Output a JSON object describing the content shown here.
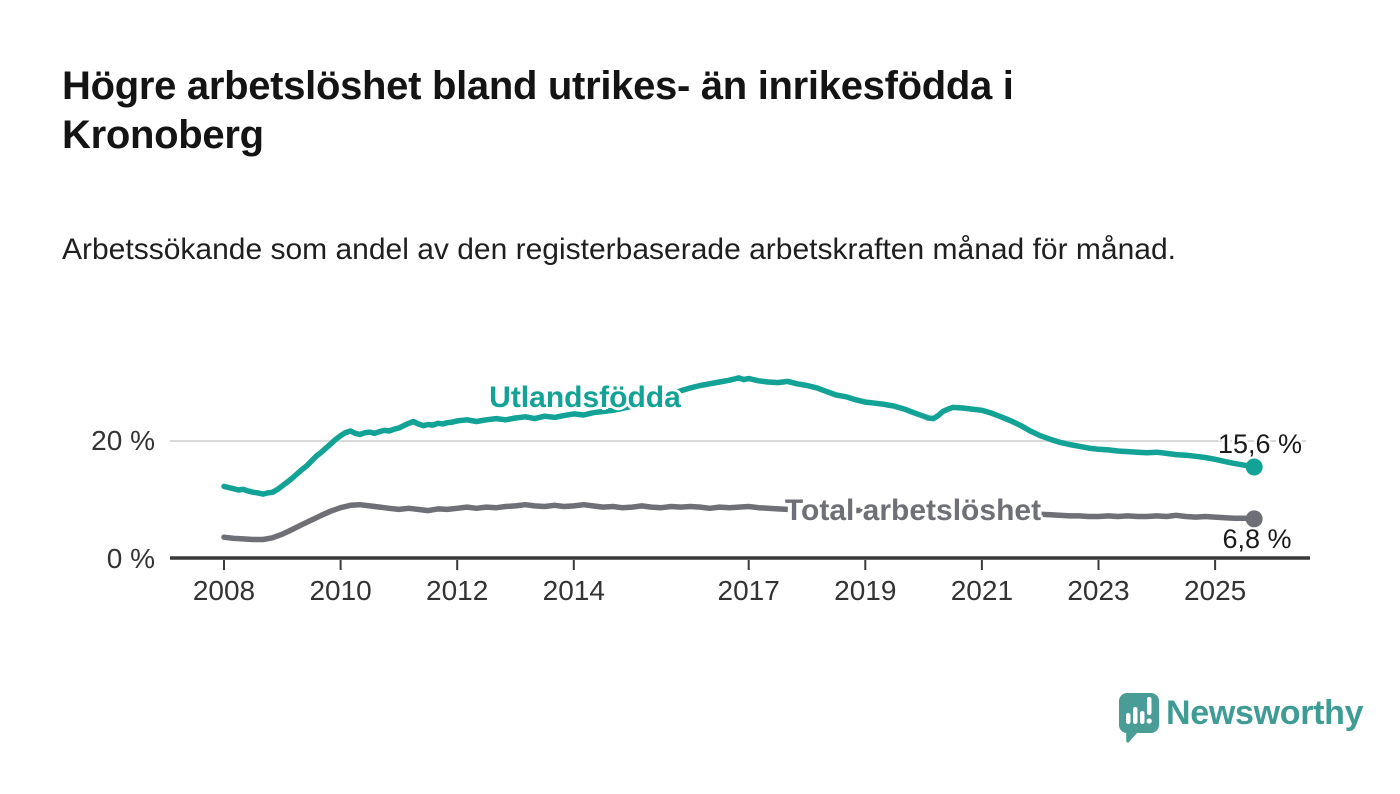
{
  "header": {
    "title": "Högre arbetslöshet bland utrikes- än inrikesfödda i Kronoberg",
    "subtitle": "Arbetssökande som andel av den registerbaserade arbetskraften månad för månad."
  },
  "chart_data": {
    "type": "line",
    "title": "Högre arbetslöshet bland utrikes- än inrikesfödda i Kronoberg",
    "subtitle": "Arbetssökande som andel av den registerbaserade arbetskraften månad för månad.",
    "grid": "horizontal gridline at 20 % only",
    "legend_position": "inline labels on lines",
    "x_axis": {
      "unit": "year (monthly data)",
      "domain": [
        2008.0,
        2026.0
      ],
      "ticks": [
        2008,
        2010,
        2012,
        2014,
        2017,
        2019,
        2021,
        2023,
        2025
      ]
    },
    "y_axis": {
      "unit": "percent",
      "domain": [
        0,
        32
      ],
      "ticks": [
        {
          "value": 0,
          "label": "0 %"
        },
        {
          "value": 20,
          "label": "20 %"
        }
      ]
    },
    "series": [
      {
        "name": "Utlandsfödda",
        "color": "#12a296",
        "end_label": "15,6 %",
        "end_value": 15.6,
        "points": [
          [
            2008.0,
            12.3
          ],
          [
            2008.08,
            12.1
          ],
          [
            2008.17,
            11.9
          ],
          [
            2008.25,
            11.7
          ],
          [
            2008.33,
            11.8
          ],
          [
            2008.42,
            11.5
          ],
          [
            2008.5,
            11.3
          ],
          [
            2008.58,
            11.2
          ],
          [
            2008.67,
            11.0
          ],
          [
            2008.75,
            11.2
          ],
          [
            2008.83,
            11.3
          ],
          [
            2008.92,
            11.8
          ],
          [
            2009.0,
            12.4
          ],
          [
            2009.08,
            13.0
          ],
          [
            2009.17,
            13.7
          ],
          [
            2009.25,
            14.4
          ],
          [
            2009.33,
            15.1
          ],
          [
            2009.42,
            15.8
          ],
          [
            2009.5,
            16.6
          ],
          [
            2009.58,
            17.4
          ],
          [
            2009.67,
            18.1
          ],
          [
            2009.75,
            18.8
          ],
          [
            2009.83,
            19.5
          ],
          [
            2009.92,
            20.3
          ],
          [
            2010.0,
            20.9
          ],
          [
            2010.08,
            21.4
          ],
          [
            2010.17,
            21.7
          ],
          [
            2010.25,
            21.3
          ],
          [
            2010.33,
            21.1
          ],
          [
            2010.42,
            21.4
          ],
          [
            2010.5,
            21.5
          ],
          [
            2010.58,
            21.3
          ],
          [
            2010.67,
            21.6
          ],
          [
            2010.75,
            21.8
          ],
          [
            2010.83,
            21.7
          ],
          [
            2010.92,
            22.0
          ],
          [
            2011.0,
            22.2
          ],
          [
            2011.08,
            22.6
          ],
          [
            2011.17,
            23.0
          ],
          [
            2011.25,
            23.3
          ],
          [
            2011.33,
            22.9
          ],
          [
            2011.42,
            22.6
          ],
          [
            2011.5,
            22.8
          ],
          [
            2011.58,
            22.7
          ],
          [
            2011.67,
            23.0
          ],
          [
            2011.75,
            22.9
          ],
          [
            2011.83,
            23.1
          ],
          [
            2011.92,
            23.2
          ],
          [
            2012.0,
            23.4
          ],
          [
            2012.17,
            23.6
          ],
          [
            2012.33,
            23.3
          ],
          [
            2012.5,
            23.6
          ],
          [
            2012.67,
            23.8
          ],
          [
            2012.83,
            23.6
          ],
          [
            2013.0,
            23.9
          ],
          [
            2013.17,
            24.1
          ],
          [
            2013.33,
            23.8
          ],
          [
            2013.5,
            24.2
          ],
          [
            2013.67,
            24.0
          ],
          [
            2013.83,
            24.3
          ],
          [
            2014.0,
            24.6
          ],
          [
            2014.17,
            24.4
          ],
          [
            2014.33,
            24.8
          ],
          [
            2014.5,
            25.0
          ],
          [
            2014.67,
            25.2
          ],
          [
            2014.83,
            25.5
          ],
          [
            2015.0,
            25.9
          ],
          [
            2015.17,
            26.3
          ],
          [
            2015.33,
            26.8
          ],
          [
            2015.5,
            27.3
          ],
          [
            2015.67,
            27.9
          ],
          [
            2015.83,
            28.5
          ],
          [
            2016.0,
            29.0
          ],
          [
            2016.17,
            29.4
          ],
          [
            2016.33,
            29.7
          ],
          [
            2016.5,
            30.0
          ],
          [
            2016.67,
            30.3
          ],
          [
            2016.83,
            30.7
          ],
          [
            2016.92,
            30.4
          ],
          [
            2017.0,
            30.6
          ],
          [
            2017.17,
            30.2
          ],
          [
            2017.33,
            30.0
          ],
          [
            2017.5,
            29.9
          ],
          [
            2017.67,
            30.1
          ],
          [
            2017.83,
            29.7
          ],
          [
            2018.0,
            29.4
          ],
          [
            2018.17,
            29.0
          ],
          [
            2018.33,
            28.4
          ],
          [
            2018.5,
            27.8
          ],
          [
            2018.67,
            27.5
          ],
          [
            2018.83,
            27.0
          ],
          [
            2019.0,
            26.6
          ],
          [
            2019.17,
            26.4
          ],
          [
            2019.33,
            26.2
          ],
          [
            2019.5,
            25.9
          ],
          [
            2019.67,
            25.4
          ],
          [
            2019.83,
            24.8
          ],
          [
            2020.0,
            24.2
          ],
          [
            2020.08,
            23.9
          ],
          [
            2020.17,
            23.8
          ],
          [
            2020.25,
            24.3
          ],
          [
            2020.33,
            25.0
          ],
          [
            2020.42,
            25.4
          ],
          [
            2020.5,
            25.7
          ],
          [
            2020.67,
            25.6
          ],
          [
            2020.83,
            25.4
          ],
          [
            2021.0,
            25.2
          ],
          [
            2021.17,
            24.7
          ],
          [
            2021.33,
            24.1
          ],
          [
            2021.5,
            23.4
          ],
          [
            2021.67,
            22.6
          ],
          [
            2021.83,
            21.7
          ],
          [
            2022.0,
            20.9
          ],
          [
            2022.17,
            20.3
          ],
          [
            2022.33,
            19.8
          ],
          [
            2022.5,
            19.4
          ],
          [
            2022.67,
            19.1
          ],
          [
            2022.83,
            18.8
          ],
          [
            2023.0,
            18.6
          ],
          [
            2023.17,
            18.5
          ],
          [
            2023.33,
            18.3
          ],
          [
            2023.5,
            18.2
          ],
          [
            2023.67,
            18.1
          ],
          [
            2023.83,
            18.0
          ],
          [
            2024.0,
            18.1
          ],
          [
            2024.17,
            17.9
          ],
          [
            2024.33,
            17.7
          ],
          [
            2024.5,
            17.6
          ],
          [
            2024.67,
            17.4
          ],
          [
            2024.83,
            17.2
          ],
          [
            2025.0,
            16.9
          ],
          [
            2025.17,
            16.5
          ],
          [
            2025.33,
            16.2
          ],
          [
            2025.5,
            15.9
          ],
          [
            2025.67,
            15.6
          ]
        ]
      },
      {
        "name": "Total arbetslöshet",
        "color": "#6f6f77",
        "end_label": "6,8 %",
        "end_value": 6.8,
        "points": [
          [
            2008.0,
            3.7
          ],
          [
            2008.17,
            3.5
          ],
          [
            2008.33,
            3.4
          ],
          [
            2008.5,
            3.3
          ],
          [
            2008.67,
            3.3
          ],
          [
            2008.83,
            3.6
          ],
          [
            2009.0,
            4.2
          ],
          [
            2009.17,
            5.0
          ],
          [
            2009.33,
            5.8
          ],
          [
            2009.5,
            6.6
          ],
          [
            2009.67,
            7.4
          ],
          [
            2009.83,
            8.1
          ],
          [
            2010.0,
            8.7
          ],
          [
            2010.17,
            9.1
          ],
          [
            2010.33,
            9.2
          ],
          [
            2010.5,
            9.0
          ],
          [
            2010.67,
            8.8
          ],
          [
            2010.83,
            8.6
          ],
          [
            2011.0,
            8.4
          ],
          [
            2011.17,
            8.6
          ],
          [
            2011.33,
            8.4
          ],
          [
            2011.5,
            8.2
          ],
          [
            2011.67,
            8.5
          ],
          [
            2011.83,
            8.4
          ],
          [
            2012.0,
            8.6
          ],
          [
            2012.17,
            8.8
          ],
          [
            2012.33,
            8.6
          ],
          [
            2012.5,
            8.8
          ],
          [
            2012.67,
            8.7
          ],
          [
            2012.83,
            8.9
          ],
          [
            2013.0,
            9.0
          ],
          [
            2013.17,
            9.2
          ],
          [
            2013.33,
            9.0
          ],
          [
            2013.5,
            8.9
          ],
          [
            2013.67,
            9.1
          ],
          [
            2013.83,
            8.9
          ],
          [
            2014.0,
            9.0
          ],
          [
            2014.17,
            9.2
          ],
          [
            2014.33,
            9.0
          ],
          [
            2014.5,
            8.8
          ],
          [
            2014.67,
            8.9
          ],
          [
            2014.83,
            8.7
          ],
          [
            2015.0,
            8.8
          ],
          [
            2015.17,
            9.0
          ],
          [
            2015.33,
            8.8
          ],
          [
            2015.5,
            8.7
          ],
          [
            2015.67,
            8.9
          ],
          [
            2015.83,
            8.8
          ],
          [
            2016.0,
            8.9
          ],
          [
            2016.17,
            8.8
          ],
          [
            2016.33,
            8.6
          ],
          [
            2016.5,
            8.8
          ],
          [
            2016.67,
            8.7
          ],
          [
            2016.83,
            8.8
          ],
          [
            2017.0,
            8.9
          ],
          [
            2017.17,
            8.7
          ],
          [
            2017.33,
            8.6
          ],
          [
            2017.5,
            8.5
          ],
          [
            2017.67,
            8.4
          ],
          [
            2017.83,
            8.3
          ],
          [
            2018.0,
            8.2
          ],
          [
            2018.17,
            8.3
          ],
          [
            2018.33,
            8.1
          ],
          [
            2018.5,
            8.0
          ],
          [
            2018.67,
            8.1
          ],
          [
            2018.83,
            8.2
          ],
          [
            2019.0,
            8.3
          ],
          [
            2019.17,
            8.2
          ],
          [
            2019.33,
            8.1
          ],
          [
            2019.5,
            8.0
          ],
          [
            2019.67,
            7.9
          ],
          [
            2019.83,
            7.8
          ],
          [
            2020.0,
            7.9
          ],
          [
            2020.17,
            8.2
          ],
          [
            2020.33,
            8.7
          ],
          [
            2020.5,
            9.0
          ],
          [
            2020.67,
            8.9
          ],
          [
            2020.83,
            8.8
          ],
          [
            2021.0,
            8.6
          ],
          [
            2021.17,
            8.4
          ],
          [
            2021.33,
            8.2
          ],
          [
            2021.5,
            8.0
          ],
          [
            2021.67,
            7.8
          ],
          [
            2021.83,
            7.7
          ],
          [
            2022.0,
            7.6
          ],
          [
            2022.17,
            7.5
          ],
          [
            2022.33,
            7.4
          ],
          [
            2022.5,
            7.3
          ],
          [
            2022.67,
            7.3
          ],
          [
            2022.83,
            7.2
          ],
          [
            2023.0,
            7.2
          ],
          [
            2023.17,
            7.3
          ],
          [
            2023.33,
            7.2
          ],
          [
            2023.5,
            7.3
          ],
          [
            2023.67,
            7.2
          ],
          [
            2023.83,
            7.2
          ],
          [
            2024.0,
            7.3
          ],
          [
            2024.17,
            7.2
          ],
          [
            2024.33,
            7.4
          ],
          [
            2024.5,
            7.2
          ],
          [
            2024.67,
            7.1
          ],
          [
            2024.83,
            7.2
          ],
          [
            2025.0,
            7.1
          ],
          [
            2025.17,
            7.0
          ],
          [
            2025.33,
            6.9
          ],
          [
            2025.5,
            6.9
          ],
          [
            2025.67,
            6.8
          ]
        ]
      }
    ],
    "colors": {
      "axis": "#3a3a3a",
      "gridline": "#d9d9d9",
      "tick_text": "#333333",
      "value_text": "#1a1a1a"
    }
  },
  "footer": {
    "brand": "Newsworthy",
    "logo_color": "#4a9d96",
    "brand_text_color": "#3e9c95"
  }
}
